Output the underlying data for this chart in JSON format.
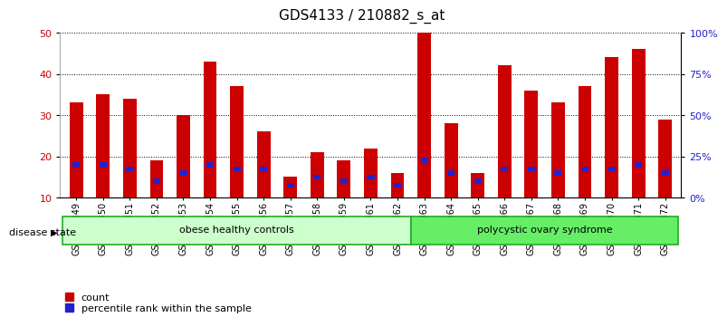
{
  "title": "GDS4133 / 210882_s_at",
  "samples": [
    "GSM201849",
    "GSM201850",
    "GSM201851",
    "GSM201852",
    "GSM201853",
    "GSM201854",
    "GSM201855",
    "GSM201856",
    "GSM201857",
    "GSM201858",
    "GSM201859",
    "GSM201861",
    "GSM201862",
    "GSM201863",
    "GSM201864",
    "GSM201865",
    "GSM201866",
    "GSM201867",
    "GSM201868",
    "GSM201869",
    "GSM201870",
    "GSM201871",
    "GSM201872"
  ],
  "count_values": [
    33,
    35,
    34,
    19,
    30,
    43,
    37,
    26,
    15,
    21,
    19,
    22,
    16,
    50,
    28,
    16,
    42,
    36,
    33,
    37,
    44,
    46,
    29
  ],
  "percentile_values": [
    18,
    18,
    17,
    14,
    16,
    18,
    17,
    17,
    13,
    15,
    14,
    15,
    13,
    19,
    16,
    14,
    17,
    17,
    16,
    17,
    17,
    18,
    16
  ],
  "group1_count": 13,
  "group2_count": 10,
  "group1_label": "obese healthy controls",
  "group2_label": "polycystic ovary syndrome",
  "group1_color": "#ccffcc",
  "group2_color": "#66ee66",
  "group_border_color": "#22aa22",
  "bar_color_red": "#cc0000",
  "bar_color_blue": "#2222cc",
  "bar_width": 0.5,
  "ylim_left": [
    10,
    50
  ],
  "yticks_left": [
    10,
    20,
    30,
    40,
    50
  ],
  "yticks_right": [
    0,
    25,
    50,
    75,
    100
  ],
  "ylabel_left_color": "#cc0000",
  "ylabel_right_color": "#2222cc",
  "background_color": "#ffffff",
  "legend_count": "count",
  "legend_percentile": "percentile rank within the sample",
  "disease_state_label": "disease state",
  "title_fontsize": 11,
  "tick_fontsize": 7,
  "label_fontsize": 8
}
